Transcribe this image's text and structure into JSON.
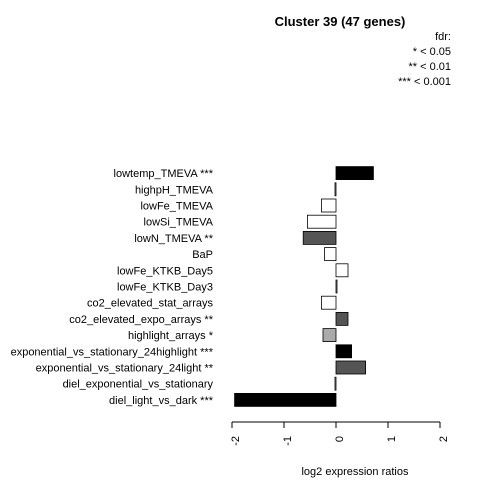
{
  "chart_data": {
    "type": "bar",
    "orientation": "horizontal",
    "title": "Cluster 39 (47 genes)",
    "xlabel": "log2 expression ratios",
    "xlim": [
      -2,
      2
    ],
    "xticks": [
      "-2",
      "-1",
      "0",
      "1",
      "2"
    ],
    "legend": {
      "title": "fdr:",
      "entries": [
        "* < 0.05",
        "** < 0.01",
        "*** < 0.001"
      ],
      "position": "top-right"
    },
    "categories": [
      "lowtemp_TMEVA ***",
      "highpH_TMEVA",
      "lowFe_TMEVA",
      "lowSi_TMEVA",
      "lowN_TMEVA **",
      "BaP",
      "lowFe_KTKB_Day5",
      "lowFe_KTKB_Day3",
      "co2_elevated_stat_arrays",
      "co2_elevated_expo_arrays **",
      "highlight_arrays *",
      "exponential_vs_stationary_24highlight ***",
      "exponential_vs_stationary_24light **",
      "diel_exponential_vs_stationary",
      "diel_light_vs_dark ***"
    ],
    "values": [
      0.72,
      -0.02,
      -0.28,
      -0.55,
      -0.63,
      -0.22,
      0.23,
      0.02,
      -0.28,
      0.23,
      -0.25,
      0.3,
      0.57,
      -0.02,
      -1.95
    ],
    "colors": [
      "#000000",
      "#ffffff",
      "#ffffff",
      "#ffffff",
      "#555555",
      "#ffffff",
      "#ffffff",
      "#ffffff",
      "#ffffff",
      "#555555",
      "#aaaaaa",
      "#000000",
      "#555555",
      "#ffffff",
      "#000000"
    ],
    "grid": false
  }
}
